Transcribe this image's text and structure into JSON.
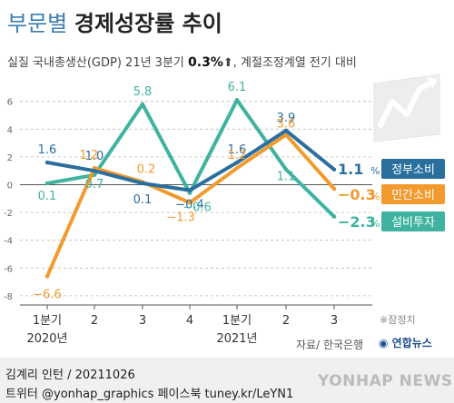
{
  "header": {
    "title_light": "부문별",
    "title_bold": "경제성장률 추이",
    "subtitle_prefix": "실질 국내총생산(GDP) 21년 3분기",
    "subtitle_value": "0.3%",
    "subtitle_suffix": "계절조정계열 전기 대비"
  },
  "chart_data": {
    "type": "line",
    "categories": [
      "1분기",
      "2",
      "3",
      "4",
      "1분기",
      "2",
      "3"
    ],
    "year_labels": [
      "2020년",
      "2021년"
    ],
    "y_ticks": [
      6,
      4,
      2,
      0,
      -2,
      -4,
      -6,
      -8
    ],
    "ylim": [
      -8,
      6.6
    ],
    "grid": true,
    "series": [
      {
        "name": "정부소비",
        "color": "#2a6f9e",
        "values": [
          1.6,
          1.0,
          0.1,
          -0.4,
          1.6,
          3.9,
          1.1
        ],
        "labels": [
          "1.6",
          "1.0",
          "0.1",
          "−0.4",
          "1.6",
          "3.9",
          "1.1"
        ],
        "end_label": "1.1"
      },
      {
        "name": "민간소비",
        "color": "#f29a2e",
        "values": [
          -6.6,
          1.2,
          0.2,
          -1.3,
          1.2,
          3.6,
          -0.3
        ],
        "labels": [
          "−6.6",
          "1.2",
          "0.2",
          "−1.3",
          "1.2",
          "3.6",
          "−0.3"
        ],
        "end_label": "−0.3"
      },
      {
        "name": "설비투자",
        "color": "#3fb3a0",
        "values": [
          0.1,
          0.7,
          5.8,
          -0.6,
          6.1,
          1.1,
          -2.3
        ],
        "labels": [
          "0.1",
          "0.7",
          "5.8",
          "−0.6",
          "6.1",
          "1.1",
          "−2.3"
        ],
        "end_label": "−2.3"
      }
    ],
    "unit": "%"
  },
  "note": "※잠정치",
  "source": "자료/ 한국은행",
  "source_logo": "연합뉴스",
  "footer": {
    "line1": "김계리 인턴 / 20211026",
    "line2": "트위터 @yonhap_graphics  페이스북 tuney.kr/LeYN1",
    "watermark": "YONHAP NEWS"
  }
}
